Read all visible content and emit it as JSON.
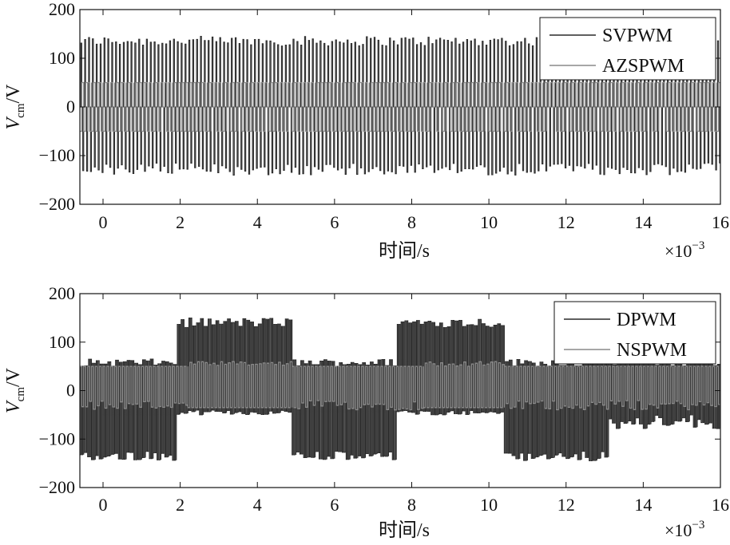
{
  "chart_data": [
    {
      "type": "line",
      "xlabel": "时间/s",
      "ylabel_main": "V",
      "ylabel_sub": "cm",
      "ylabel_unit": "/V",
      "x_exponent_label": "×10",
      "x_exponent": "−3",
      "xlim": [
        -0.6,
        16
      ],
      "ylim": [
        -200,
        200
      ],
      "xticks": [
        0,
        2,
        4,
        6,
        8,
        10,
        12,
        14,
        16
      ],
      "yticks": [
        200,
        100,
        0,
        -100,
        -200
      ],
      "ytick_labels": [
        "200",
        "100",
        "0",
        "−100",
        "−200"
      ],
      "legend_position": "top-right",
      "series": [
        {
          "name": "SVPWM",
          "color": "#2a2a2a",
          "description_values": {
            "upper_peak": 140,
            "lower_peak": -130,
            "pulse_period_ms": 0.2
          }
        },
        {
          "name": "AZSPWM",
          "color": "#8a8a8a",
          "description_values": {
            "upper_level": 50,
            "lower_level": -50
          }
        }
      ]
    },
    {
      "type": "line",
      "xlabel": "时间/s",
      "ylabel_main": "V",
      "ylabel_sub": "cm",
      "ylabel_unit": "/V",
      "x_exponent_label": "×10",
      "x_exponent": "−3",
      "xlim": [
        -0.6,
        16
      ],
      "ylim": [
        -200,
        200
      ],
      "xticks": [
        0,
        2,
        4,
        6,
        8,
        10,
        12,
        14,
        16
      ],
      "yticks": [
        200,
        100,
        0,
        -100,
        -200
      ],
      "ytick_labels": [
        "200",
        "100",
        "0",
        "−100",
        "−200"
      ],
      "legend_position": "top-right",
      "series": [
        {
          "name": "DPWM",
          "color": "#2a2a2a",
          "segments": [
            [
              -0.6,
              1.9,
              "low"
            ],
            [
              1.9,
              4.8,
              "high"
            ],
            [
              4.8,
              7.5,
              "low"
            ],
            [
              7.5,
              10.3,
              "high"
            ],
            [
              10.3,
              13.0,
              "low"
            ],
            [
              13.0,
              16,
              "mixed"
            ]
          ]
        },
        {
          "name": "NSPWM",
          "color": "#8a8a8a",
          "segments": [
            [
              -0.6,
              2.2,
              "pos"
            ],
            [
              2.2,
              4.8,
              "neg"
            ],
            [
              4.8,
              8.2,
              "pos"
            ],
            [
              8.2,
              10.3,
              "neg"
            ],
            [
              10.3,
              16,
              "pos"
            ]
          ]
        }
      ]
    }
  ]
}
